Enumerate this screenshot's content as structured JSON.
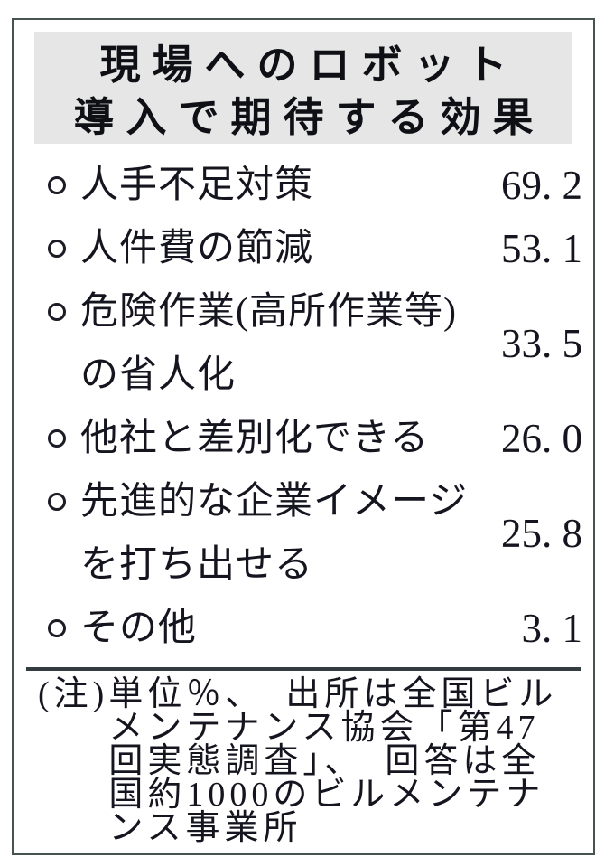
{
  "title": {
    "line1": "現場へのロボット",
    "line2": "導入で期待する効果"
  },
  "items": [
    {
      "lines": [
        "人手不足対策"
      ],
      "value": "69. 2"
    },
    {
      "lines": [
        "人件費の節減"
      ],
      "value": "53. 1"
    },
    {
      "lines": [
        "危険作業(高所作業等)",
        "の省人化"
      ],
      "value": "33. 5"
    },
    {
      "lines": [
        "他社と差別化できる"
      ],
      "value": "26. 0"
    },
    {
      "lines": [
        "先進的な企業イメージ",
        "を打ち出せる"
      ],
      "value": "25. 8"
    },
    {
      "lines": [
        "その他"
      ],
      "value": "3. 1"
    }
  ],
  "note": {
    "prefix": "(注)",
    "lines": [
      "単位％、　出所は全国ビル",
      "メンテナンス協会「第47",
      "回実態調査」、　回答は全",
      "国約1000のビルメンテナ",
      "ンス事業所"
    ]
  },
  "colors": {
    "border": "#46544f",
    "title_background": "#e5e6e5",
    "text": "#15151f",
    "separator": "#333d41"
  },
  "chart_data": {
    "type": "table",
    "title": "現場へのロボット導入で期待する効果",
    "categories": [
      "人手不足対策",
      "人件費の節減",
      "危険作業(高所作業等)の省人化",
      "他社と差別化できる",
      "先進的な企業イメージを打ち出せる",
      "その他"
    ],
    "values": [
      69.2,
      53.1,
      33.5,
      26.0,
      25.8,
      3.1
    ],
    "unit": "%",
    "note": "(注)単位％、出所は全国ビルメンテナンス協会「第47回実態調査」、回答は全国約1000のビルメンテナンス事業所"
  }
}
